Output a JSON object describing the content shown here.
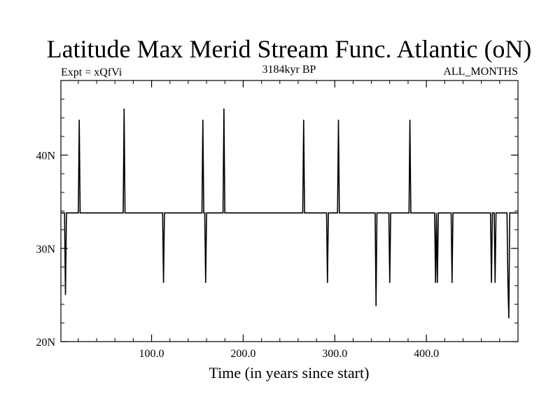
{
  "chart_data": {
    "type": "line",
    "title": "Latitude Max Merid Stream Func. Atlantic (oN)",
    "subtitle_left": "Expt = xQfVi",
    "subtitle_center": "3184kyr BP",
    "subtitle_right": "ALL_MONTHS",
    "xlabel": "Time (in years since start)",
    "ylabel": "",
    "xlim": [
      1,
      500
    ],
    "ylim": [
      20,
      48
    ],
    "x_ticks": [
      {
        "value": 100,
        "label": "100.0"
      },
      {
        "value": 200,
        "label": "200.0"
      },
      {
        "value": 300,
        "label": "300.0"
      },
      {
        "value": 400,
        "label": "400.0"
      }
    ],
    "y_ticks": [
      {
        "value": 20,
        "label": "20N"
      },
      {
        "value": 30,
        "label": "30N"
      },
      {
        "value": 40,
        "label": "40N"
      }
    ],
    "grid": false,
    "series": [
      {
        "color": "#000000",
        "baseline": 33.8,
        "x": [
          1,
          5,
          6,
          7,
          20,
          21,
          22,
          69,
          70,
          71,
          112,
          113,
          114,
          155,
          156,
          157,
          158,
          159,
          160,
          178,
          179,
          180,
          265,
          266,
          267,
          291,
          292,
          293,
          303,
          304,
          305,
          344,
          345,
          346,
          359,
          360,
          361,
          381,
          382,
          383,
          409,
          410,
          411,
          412,
          413,
          414,
          427,
          428,
          429,
          470,
          471,
          472,
          474,
          475,
          476,
          488,
          489,
          490,
          491,
          500
        ],
        "y": [
          33.8,
          33.8,
          25.0,
          33.8,
          33.8,
          43.8,
          33.8,
          33.8,
          45.0,
          33.8,
          33.8,
          26.3,
          33.8,
          33.8,
          43.8,
          33.8,
          33.8,
          26.3,
          33.8,
          33.8,
          45.0,
          33.8,
          33.8,
          43.8,
          33.8,
          33.8,
          26.3,
          33.8,
          33.8,
          43.8,
          33.8,
          33.8,
          23.8,
          33.8,
          33.8,
          26.3,
          33.8,
          33.8,
          43.8,
          33.8,
          33.8,
          26.3,
          33.8,
          26.3,
          33.8,
          33.8,
          33.8,
          26.3,
          33.8,
          33.8,
          26.3,
          33.8,
          33.8,
          26.3,
          33.8,
          33.8,
          26.3,
          22.5,
          33.8,
          33.8
        ]
      }
    ]
  }
}
